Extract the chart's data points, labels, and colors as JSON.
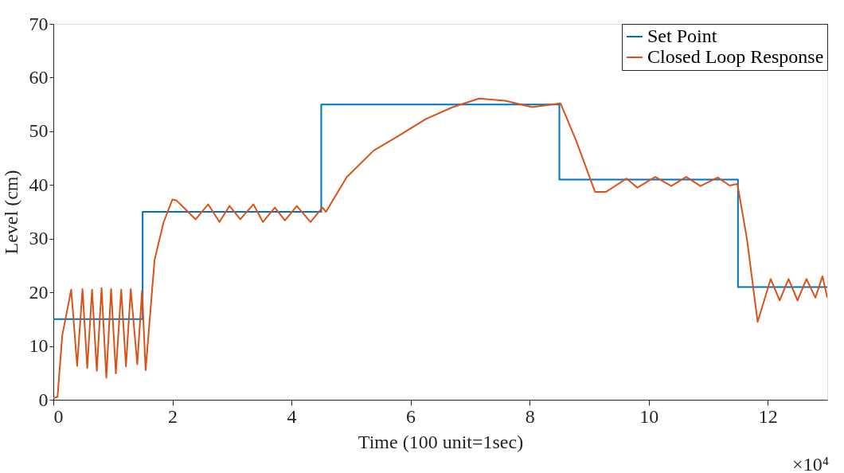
{
  "chart_data": {
    "type": "line",
    "xlabel": "Time (100 unit=1sec)",
    "ylabel": "Level (cm)",
    "xlim": [
      0,
      13
    ],
    "xticks": [
      0,
      2,
      4,
      6,
      8,
      10,
      12
    ],
    "ylim": [
      0,
      70
    ],
    "yticks": [
      0,
      10,
      20,
      30,
      40,
      50,
      60,
      70
    ],
    "grid": false,
    "legend": "top right",
    "marker": "none",
    "line_style": "solid",
    "annotations": [
      "×10⁴"
    ],
    "series": [
      {
        "name": "Set Point",
        "type": "step",
        "color": "#0072bd",
        "x": [
          0,
          1.5,
          4.5,
          8.5,
          11.5,
          13
        ],
        "values": [
          15,
          35,
          55,
          41,
          21,
          21
        ]
      },
      {
        "name": "Closed Loop Response",
        "color": "#d95319",
        "x": [
          0,
          0.07,
          0.15,
          0.3,
          0.4,
          0.49,
          0.57,
          0.65,
          0.73,
          0.81,
          0.89,
          0.97,
          1.05,
          1.14,
          1.22,
          1.3,
          1.41,
          1.49,
          1.55,
          1.7,
          1.85,
          2.0,
          2.07,
          2.39,
          2.6,
          2.79,
          2.96,
          3.14,
          3.36,
          3.52,
          3.72,
          3.89,
          4.09,
          4.32,
          4.52,
          4.58,
          4.93,
          5.38,
          5.82,
          6.26,
          6.71,
          7.15,
          7.59,
          8.04,
          8.52,
          8.78,
          9.1,
          9.28,
          9.63,
          9.81,
          10.11,
          10.38,
          10.63,
          10.87,
          11.16,
          11.36,
          11.49,
          11.65,
          11.83,
          12.05,
          12.2,
          12.35,
          12.5,
          12.65,
          12.8,
          12.92,
          13
        ],
        "values": [
          0.3,
          0.5,
          12,
          20.5,
          6.3,
          20.6,
          5.9,
          20.5,
          5.4,
          20.8,
          4.1,
          20.6,
          4.9,
          20.5,
          6.2,
          20.6,
          6.6,
          20.3,
          5.5,
          26,
          33,
          37.3,
          37.1,
          33.6,
          36.4,
          33.1,
          36.1,
          33.6,
          36.4,
          33.1,
          35.8,
          33.4,
          36.1,
          33.1,
          35.8,
          35,
          41.5,
          46.4,
          49.3,
          52.3,
          54.5,
          56.1,
          55.7,
          54.5,
          55.2,
          48.3,
          38.7,
          38.7,
          41.2,
          39.5,
          41.5,
          39.8,
          41.5,
          39.8,
          41.4,
          39.9,
          40.2,
          30,
          14.5,
          22.5,
          18.5,
          22.5,
          18.5,
          22.5,
          19,
          23,
          19
        ]
      }
    ]
  }
}
